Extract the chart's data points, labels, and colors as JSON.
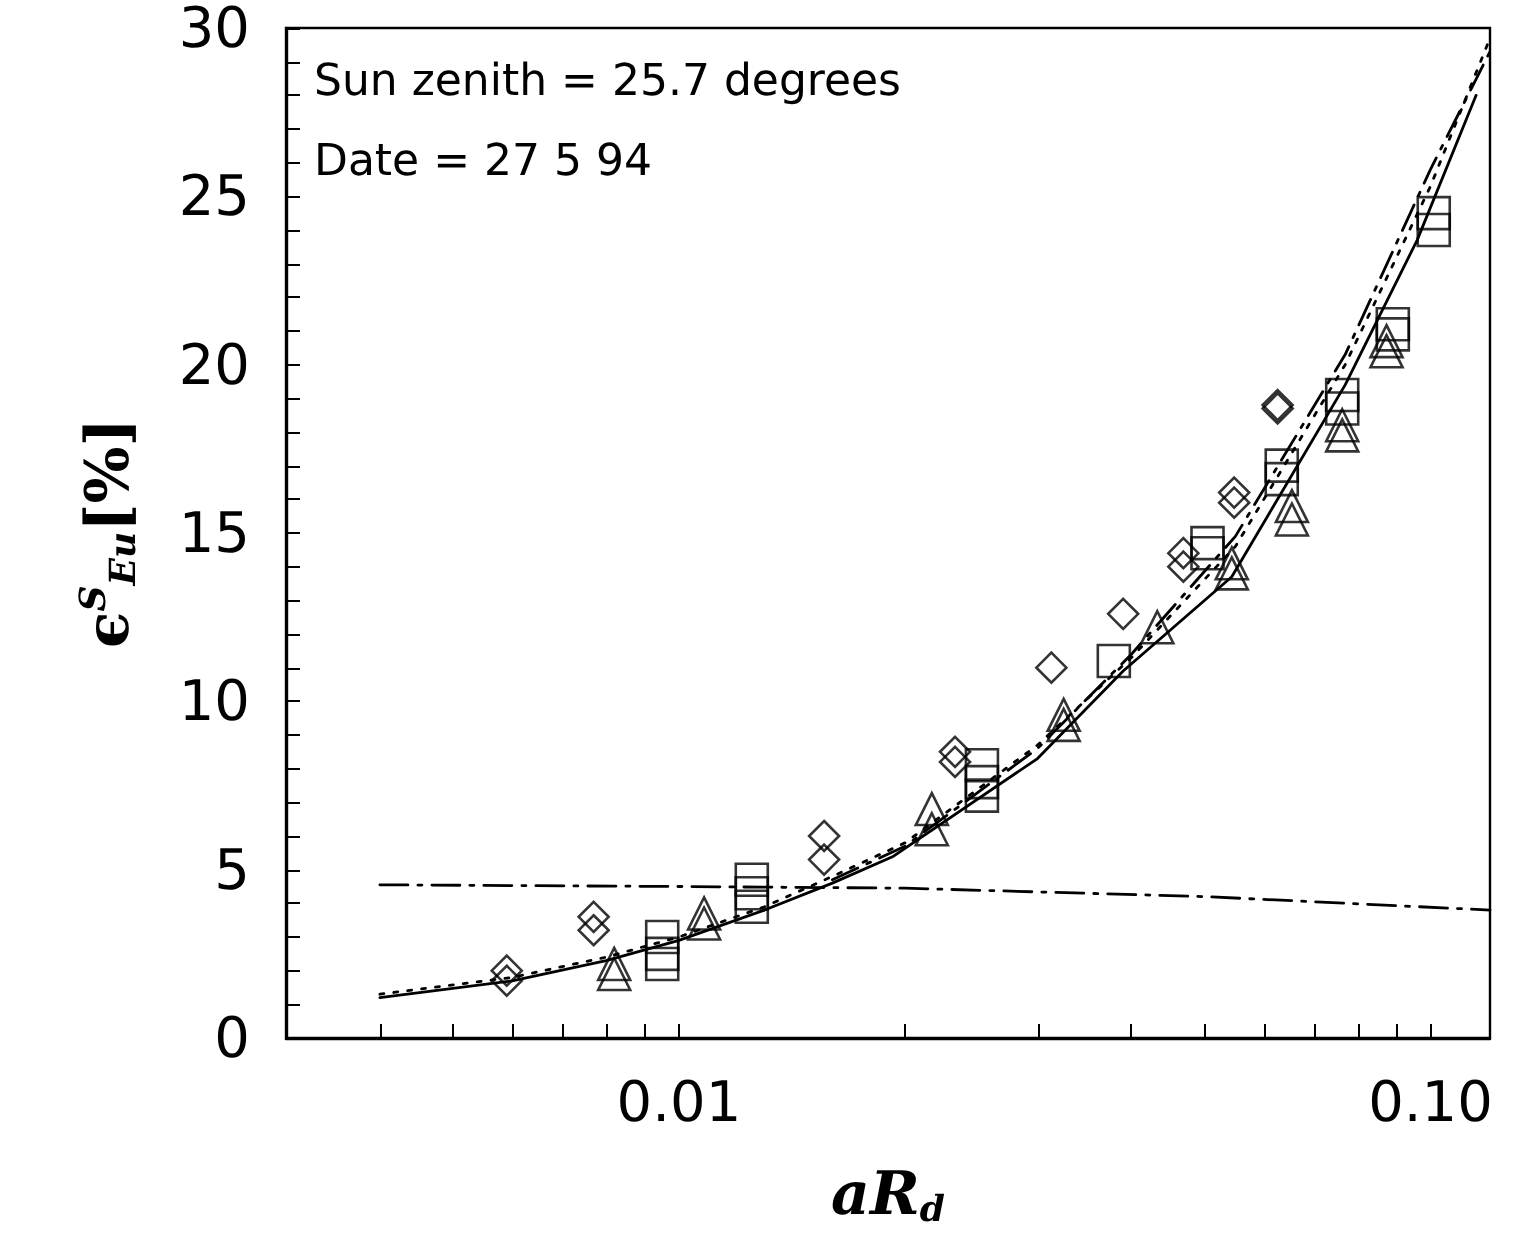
{
  "chart_data": {
    "type": "scatter",
    "xlabel": "aR$_{d}$",
    "ylabel": "ϵ$^{S}$$_{Eu}$[%]",
    "annotations": [
      "Sun zenith = 25.7 degrees",
      "Date = 27 5 94"
    ],
    "log": "x",
    "grid": false,
    "xlim": [
      0.003,
      0.12
    ],
    "xticks": [
      {
        "value": 0.004,
        "label": null
      },
      {
        "value": 0.005,
        "label": null
      },
      {
        "value": 0.006,
        "label": null
      },
      {
        "value": 0.007,
        "label": null
      },
      {
        "value": 0.008,
        "label": null
      },
      {
        "value": 0.009,
        "label": null
      },
      {
        "value": 0.01,
        "label": "0.01"
      },
      {
        "value": 0.02,
        "label": null
      },
      {
        "value": 0.03,
        "label": null
      },
      {
        "value": 0.04,
        "label": null
      },
      {
        "value": 0.05,
        "label": null
      },
      {
        "value": 0.06,
        "label": null
      },
      {
        "value": 0.07,
        "label": null
      },
      {
        "value": 0.08,
        "label": null
      },
      {
        "value": 0.09,
        "label": null
      },
      {
        "value": 0.1,
        "label": "0.10"
      }
    ],
    "ylim": [
      0,
      30
    ],
    "yticks": [
      0,
      {
        "value": 1,
        "label": null
      },
      {
        "value": 2,
        "label": null
      },
      {
        "value": 3,
        "label": null
      },
      {
        "value": 4,
        "label": null
      },
      5,
      {
        "value": 6,
        "label": null
      },
      {
        "value": 7,
        "label": null
      },
      {
        "value": 8,
        "label": null
      },
      {
        "value": 9,
        "label": null
      },
      10,
      {
        "value": 11,
        "label": null
      },
      {
        "value": 12,
        "label": null
      },
      {
        "value": 13,
        "label": null
      },
      {
        "value": 14,
        "label": null
      },
      15,
      {
        "value": 16,
        "label": null
      },
      {
        "value": 17,
        "label": null
      },
      {
        "value": 18,
        "label": null
      },
      {
        "value": 19,
        "label": null
      },
      20,
      {
        "value": 21,
        "label": null
      },
      {
        "value": 22,
        "label": null
      },
      {
        "value": 23,
        "label": null
      },
      {
        "value": 24,
        "label": null
      },
      25,
      {
        "value": 26,
        "label": null
      },
      {
        "value": 27,
        "label": null
      },
      {
        "value": 28,
        "label": null
      },
      {
        "value": 29,
        "label": null
      },
      30
    ],
    "series": [
      {
        "marker": "diamond",
        "color": "#000000",
        "x": [
          0.0059,
          0.0059,
          0.0077,
          0.0077,
          0.0156,
          0.0156,
          0.0233,
          0.0233,
          0.0313,
          0.039,
          0.0469,
          0.0469,
          0.0548,
          0.0548,
          0.0626,
          0.0626
        ],
        "values": [
          2.0,
          1.7,
          3.6,
          3.2,
          6.0,
          5.3,
          8.5,
          8.2,
          11.0,
          12.6,
          14.4,
          14.0,
          16.2,
          15.9,
          18.8,
          18.7
        ]
      },
      {
        "marker": "square",
        "color": "#000000",
        "x": [
          0.0095,
          0.0095,
          0.0095,
          0.0125,
          0.0125,
          0.0125,
          0.0253,
          0.0253,
          0.0253,
          0.0379,
          0.0505,
          0.0505,
          0.0634,
          0.0634,
          0.0763,
          0.0763,
          0.0891,
          0.0891,
          0.101,
          0.101
        ],
        "values": [
          3.0,
          2.5,
          2.2,
          4.7,
          4.3,
          3.9,
          8.1,
          7.6,
          7.2,
          11.2,
          14.7,
          14.4,
          17.0,
          16.6,
          19.1,
          18.7,
          21.2,
          20.9,
          24.5,
          24.0
        ]
      },
      {
        "marker": "triangle",
        "color": "#000000",
        "x": [
          0.0082,
          0.0082,
          0.0108,
          0.0108,
          0.0217,
          0.0217,
          0.0325,
          0.0325,
          0.0433,
          0.0544,
          0.0544,
          0.0654,
          0.0654,
          0.0763,
          0.0763,
          0.0874,
          0.0874
        ],
        "values": [
          2.2,
          1.9,
          3.7,
          3.4,
          6.8,
          6.2,
          9.6,
          9.3,
          12.2,
          14.1,
          13.8,
          15.8,
          15.4,
          18.2,
          17.9,
          20.7,
          20.4
        ]
      },
      {
        "type": "line",
        "line_style": "solid",
        "color": "#000000",
        "x": [
          0.004,
          0.006,
          0.008,
          0.01,
          0.013,
          0.016,
          0.0193,
          0.03,
          0.039,
          0.0544,
          0.077,
          0.096,
          0.115
        ],
        "values": [
          1.2,
          1.7,
          2.3,
          2.9,
          3.8,
          4.6,
          5.4,
          8.3,
          10.9,
          13.7,
          19.4,
          23.7,
          28.0
        ]
      },
      {
        "type": "line",
        "line_style": "dotted",
        "color": "#000000",
        "x": [
          0.004,
          0.006,
          0.008,
          0.01,
          0.013,
          0.016,
          0.02,
          0.03,
          0.04,
          0.055,
          0.077,
          0.1,
          0.12
        ],
        "values": [
          1.3,
          1.8,
          2.4,
          3.0,
          3.9,
          4.8,
          5.8,
          8.7,
          11.3,
          14.6,
          20.0,
          25.3,
          29.7
        ]
      },
      {
        "type": "line",
        "line_style": "dashed",
        "color": "#000000",
        "x": [
          0.016,
          0.02,
          0.03,
          0.04,
          0.055,
          0.077,
          0.1,
          0.12
        ],
        "values": [
          4.7,
          5.7,
          8.6,
          11.4,
          14.9,
          20.3,
          25.8,
          29.3
        ]
      },
      {
        "type": "line",
        "line_style": "dashed",
        "color": "#000000",
        "x": [
          0.004,
          0.01,
          0.02,
          0.05,
          0.12
        ],
        "values": [
          4.55,
          4.5,
          4.45,
          4.2,
          3.8
        ]
      }
    ]
  }
}
